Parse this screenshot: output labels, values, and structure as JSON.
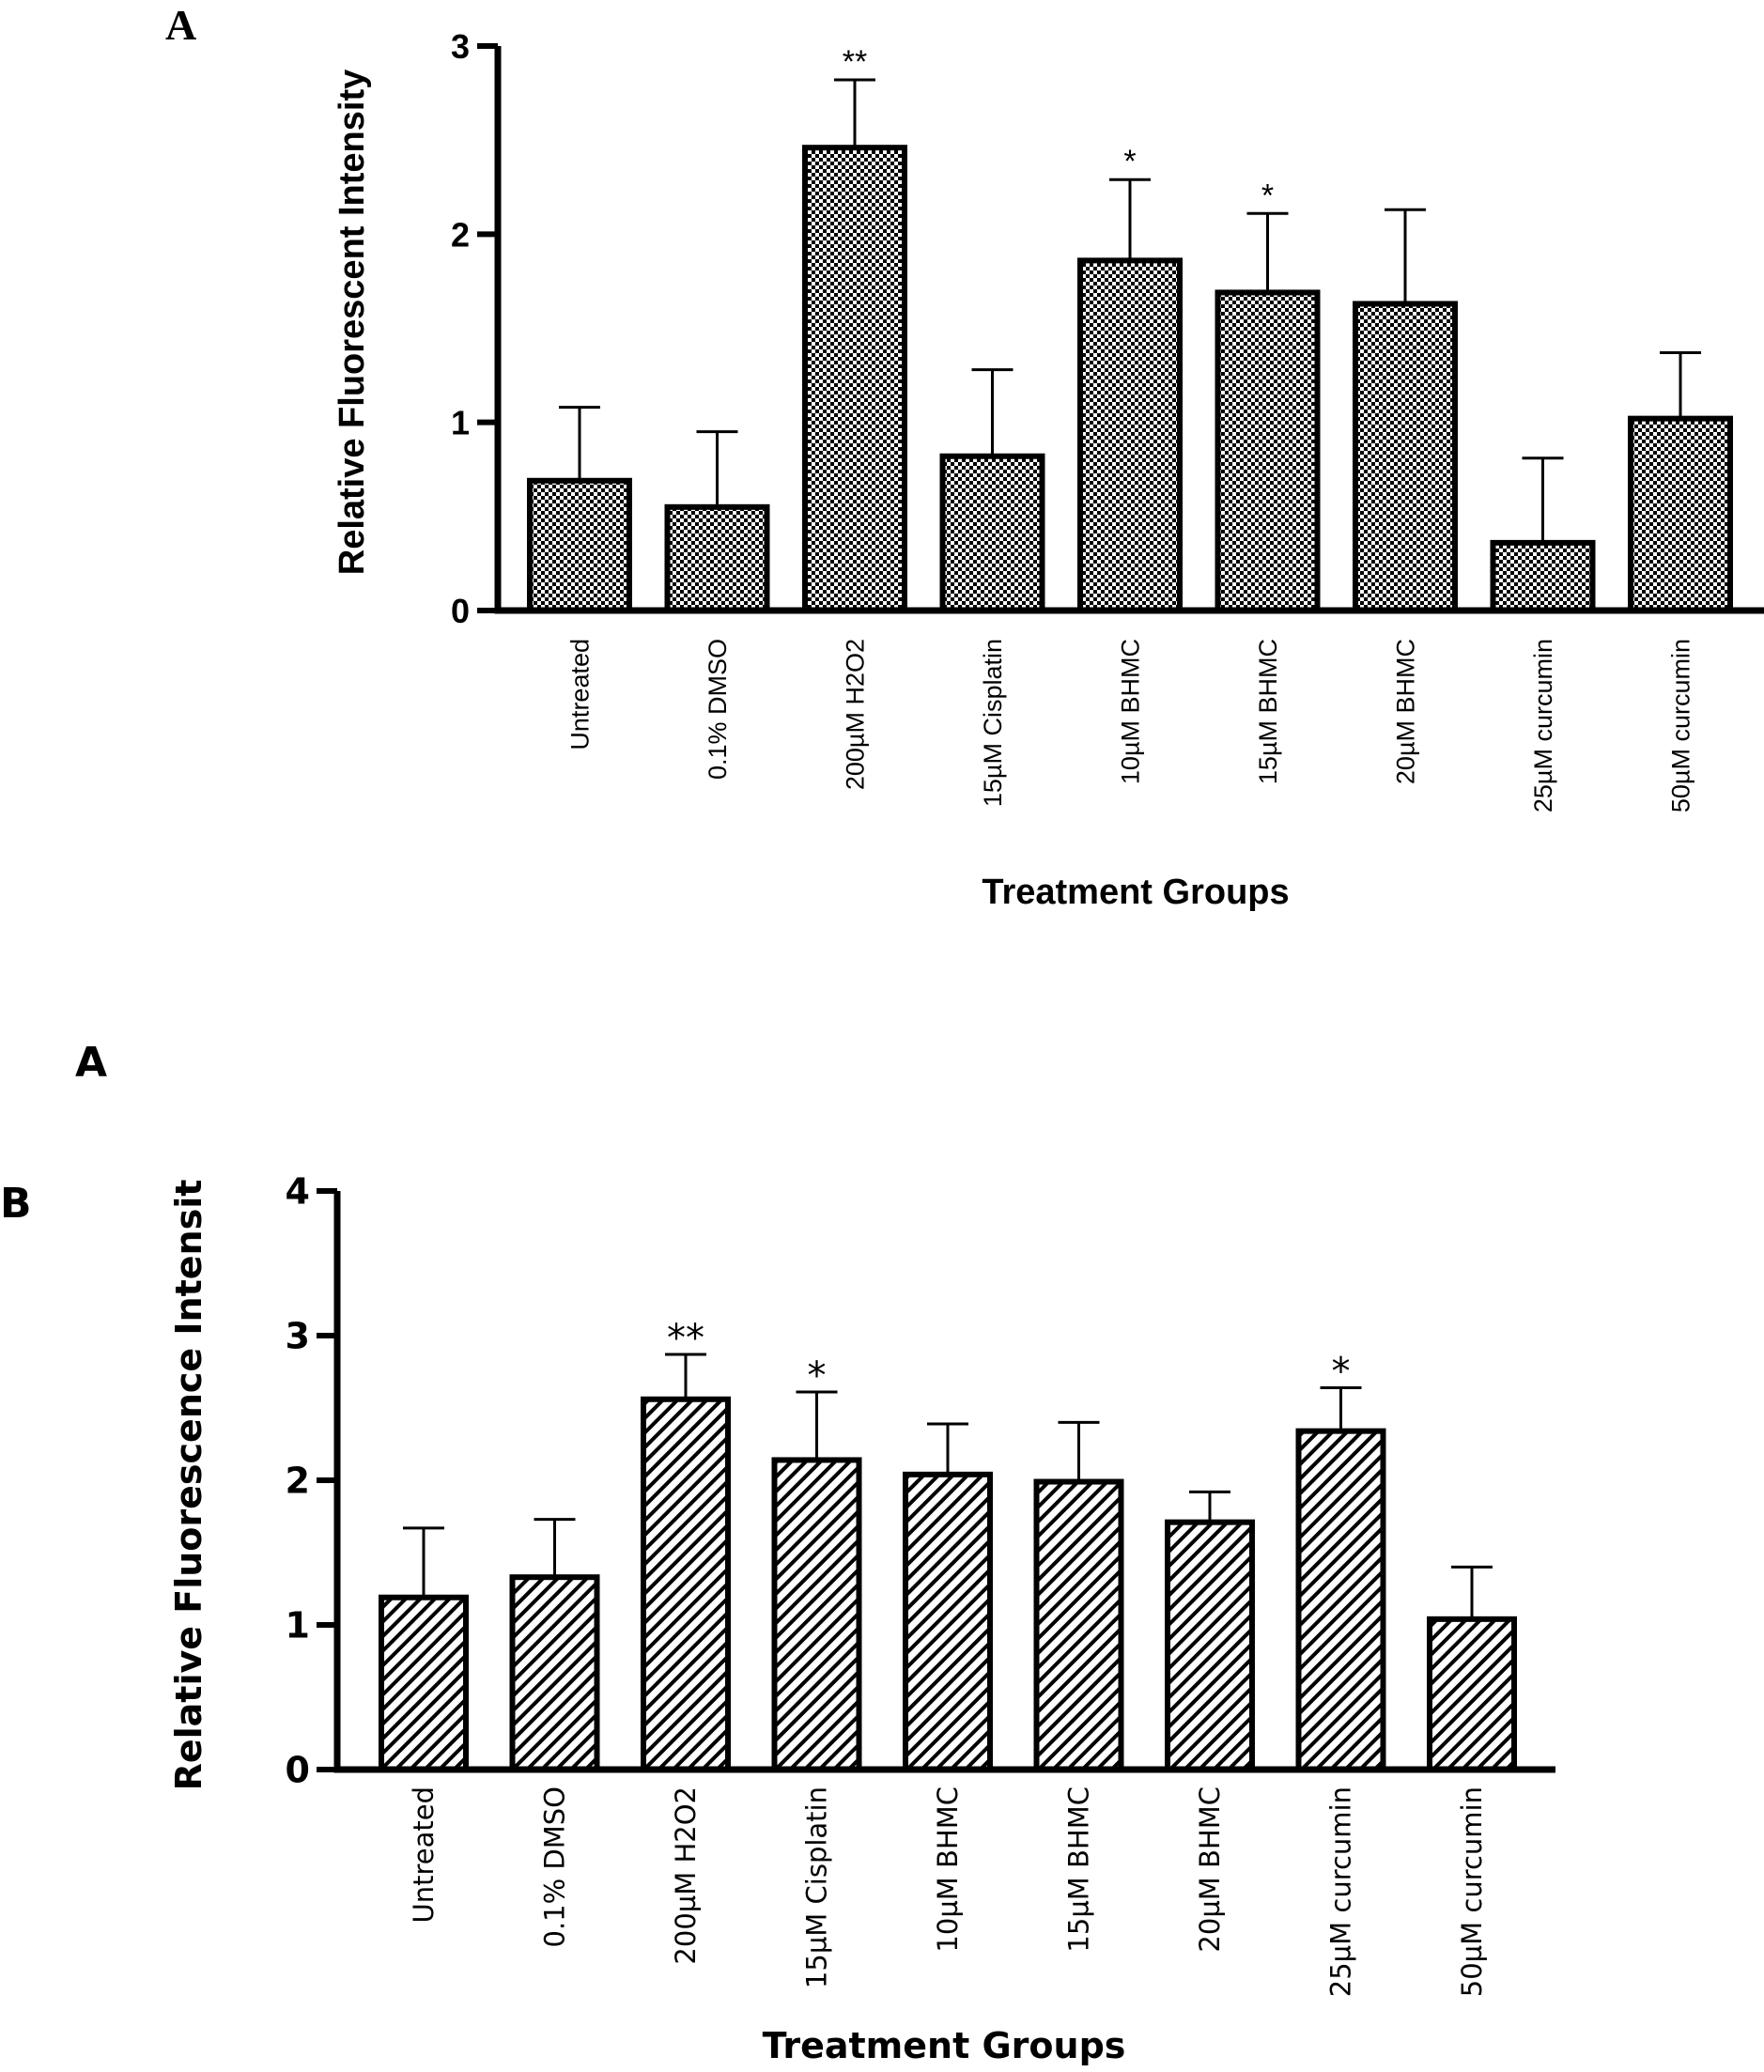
{
  "figure": {
    "panel_label_top": "A",
    "panel_label_middle": "A",
    "panel_label_bottom": "B"
  },
  "chart_data": [
    {
      "type": "bar",
      "panel": "A",
      "fill_pattern": "checkerboard",
      "title": "",
      "xlabel": "Treatment Groups",
      "ylabel": "Relative Fluorescent Intensity",
      "ylim": [
        0,
        3
      ],
      "yticks": [
        0,
        1,
        2,
        3
      ],
      "categories": [
        "Untreated",
        "0.1% DMSO",
        "200µM H2O2",
        "15µM Cisplatin",
        "10µM BHMC",
        "15µM BHMC",
        "20µM BHMC",
        "25µM curcumin",
        "50µM curcumin"
      ],
      "values": [
        0.69,
        0.55,
        2.46,
        0.82,
        1.86,
        1.69,
        1.63,
        0.36,
        1.02
      ],
      "errors": [
        0.39,
        0.4,
        0.36,
        0.46,
        0.43,
        0.42,
        0.5,
        0.45,
        0.35
      ],
      "significance": [
        "",
        "",
        "**",
        "",
        "*",
        "*",
        "",
        "",
        ""
      ]
    },
    {
      "type": "bar",
      "panel": "B",
      "fill_pattern": "diagonal-hatch",
      "title": "",
      "xlabel": "Treatment Groups",
      "ylabel": "Relative Fluorescence Intensit",
      "ylim": [
        0,
        4
      ],
      "yticks": [
        0,
        1,
        2,
        3,
        4
      ],
      "categories": [
        "Untreated",
        "0.1% DMSO",
        "200µM H2O2",
        "15µM Cisplatin",
        "10µM BHMC",
        "15µM BHMC",
        "20µM BHMC",
        "25µM curcumin",
        "50µM curcumin"
      ],
      "values": [
        1.19,
        1.33,
        2.56,
        2.14,
        2.04,
        1.99,
        1.71,
        2.34,
        1.04
      ],
      "errors": [
        0.48,
        0.4,
        0.31,
        0.47,
        0.35,
        0.41,
        0.21,
        0.3,
        0.36
      ],
      "significance": [
        "",
        "",
        "**",
        "*",
        "",
        "",
        "",
        "*",
        ""
      ]
    }
  ]
}
